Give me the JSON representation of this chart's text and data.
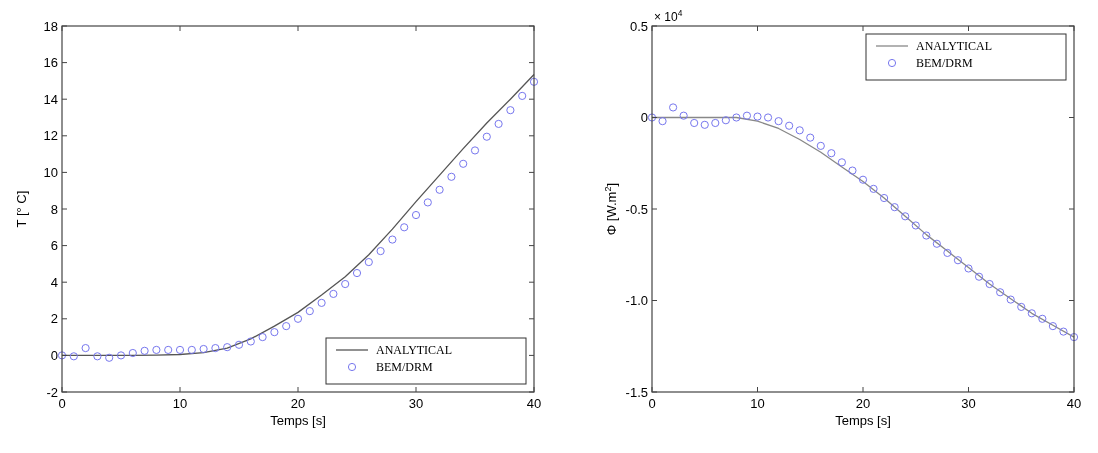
{
  "chart_data": [
    {
      "type": "line",
      "xlabel": "Temps [s]",
      "ylabel": "T [° C]",
      "xlim": [
        0,
        40
      ],
      "ylim": [
        -2,
        18
      ],
      "xticks": [
        0,
        10,
        20,
        30,
        40
      ],
      "yticks": [
        -2,
        0,
        2,
        4,
        6,
        8,
        10,
        12,
        14,
        16,
        18
      ],
      "legend": "bottom right",
      "series": [
        {
          "name": "ANALYTICAL",
          "color": "#555555",
          "x": [
            0,
            2,
            4,
            6,
            8,
            10,
            12,
            14,
            16,
            18,
            20,
            22,
            24,
            26,
            28,
            30,
            32,
            34,
            36,
            38,
            40
          ],
          "values": [
            0,
            0,
            0,
            0,
            0.02,
            0.05,
            0.15,
            0.4,
            0.9,
            1.6,
            2.35,
            3.3,
            4.3,
            5.5,
            6.9,
            8.4,
            9.85,
            11.3,
            12.7,
            14.0,
            15.35
          ]
        },
        {
          "name": "BEM/DRM",
          "type": "scatter",
          "marker": "circle",
          "color": "#7777ee",
          "x": [
            0,
            1,
            2,
            3,
            4,
            5,
            6,
            7,
            8,
            9,
            10,
            11,
            12,
            13,
            14,
            15,
            16,
            17,
            18,
            19,
            20,
            21,
            22,
            23,
            24,
            25,
            26,
            27,
            28,
            29,
            30,
            31,
            32,
            33,
            34,
            35,
            36,
            37,
            38,
            39,
            40
          ],
          "values": [
            0,
            -0.05,
            0.4,
            -0.05,
            -0.13,
            0,
            0.13,
            0.25,
            0.3,
            0.3,
            0.3,
            0.3,
            0.35,
            0.4,
            0.45,
            0.58,
            0.76,
            1.0,
            1.27,
            1.6,
            2.0,
            2.42,
            2.87,
            3.36,
            3.9,
            4.5,
            5.1,
            5.7,
            6.33,
            7.0,
            7.67,
            8.36,
            9.05,
            9.76,
            10.47,
            11.2,
            11.95,
            12.65,
            13.4,
            14.18,
            14.95
          ]
        }
      ]
    },
    {
      "type": "line",
      "xlabel": "Temps [s]",
      "ylabel": "Φ [W.m$^{2}$]",
      "annotations": [
        "× 10$^{4}$"
      ],
      "xlim": [
        0,
        40
      ],
      "ylim": [
        -1.5,
        0.5
      ],
      "xticks": [
        0,
        10,
        20,
        30,
        40
      ],
      "yticks": [
        -1.5,
        {
          "value": -1,
          "label": "-1.0"
        },
        -0.5,
        0,
        0.5
      ],
      "legend": "top right",
      "series": [
        {
          "name": "ANALYTICAL",
          "color": "#888888",
          "x": [
            0,
            2,
            4,
            6,
            8,
            10,
            12,
            14,
            16,
            18,
            20,
            22,
            24,
            26,
            28,
            30,
            32,
            34,
            36,
            38,
            40
          ],
          "values": [
            0,
            0,
            0,
            0,
            0,
            -0.02,
            -0.06,
            -0.12,
            -0.19,
            -0.27,
            -0.35,
            -0.44,
            -0.54,
            -0.64,
            -0.73,
            -0.82,
            -0.91,
            -0.99,
            -1.07,
            -1.135,
            -1.2
          ]
        },
        {
          "name": "BEM/DRM",
          "type": "scatter",
          "marker": "circle",
          "color": "#7777ee",
          "x": [
            0,
            1,
            2,
            3,
            4,
            5,
            6,
            7,
            8,
            9,
            10,
            11,
            12,
            13,
            14,
            15,
            16,
            17,
            18,
            19,
            20,
            21,
            22,
            23,
            24,
            25,
            26,
            27,
            28,
            29,
            30,
            31,
            32,
            33,
            34,
            35,
            36,
            37,
            38,
            39,
            40
          ],
          "values": [
            0,
            -0.02,
            0.055,
            0.01,
            -0.03,
            -0.04,
            -0.03,
            -0.015,
            0,
            0.01,
            0.005,
            0,
            -0.02,
            -0.045,
            -0.07,
            -0.11,
            -0.155,
            -0.195,
            -0.245,
            -0.29,
            -0.34,
            -0.39,
            -0.44,
            -0.49,
            -0.54,
            -0.59,
            -0.645,
            -0.69,
            -0.74,
            -0.78,
            -0.825,
            -0.87,
            -0.91,
            -0.955,
            -0.995,
            -1.035,
            -1.07,
            -1.1,
            -1.14,
            -1.17,
            -1.2
          ]
        }
      ]
    }
  ]
}
